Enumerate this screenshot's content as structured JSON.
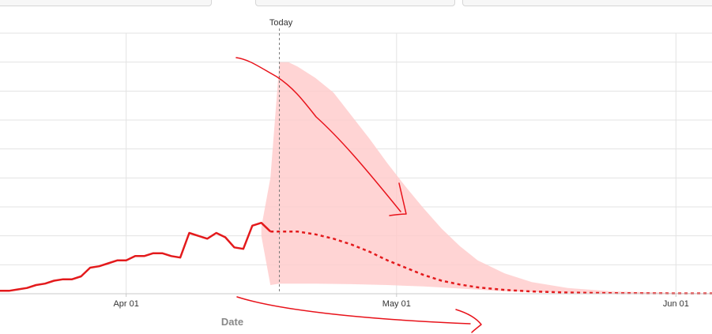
{
  "colors": {
    "series": "#e31a1c",
    "band": "#ffc9c9",
    "grid": "#e3e3e3",
    "annotation": "#e8121a"
  },
  "chart_data": {
    "type": "line",
    "title": "",
    "xlabel": "Date",
    "ylabel": "",
    "xlim": [
      "2020-03-18",
      "2020-06-05"
    ],
    "ylim": [
      0,
      9
    ],
    "grid": true,
    "x_ticks": [
      {
        "date": "2020-04-01",
        "label": "Apr 01"
      },
      {
        "date": "2020-05-01",
        "label": "May 01"
      },
      {
        "date": "2020-06-01",
        "label": "Jun 01"
      }
    ],
    "today": {
      "date": "2020-04-18",
      "label": "Today"
    },
    "series": [
      {
        "style": "solid",
        "points": [
          [
            "2020-03-18",
            0.1
          ],
          [
            "2020-03-19",
            0.1
          ],
          [
            "2020-03-20",
            0.15
          ],
          [
            "2020-03-21",
            0.2
          ],
          [
            "2020-03-22",
            0.3
          ],
          [
            "2020-03-23",
            0.35
          ],
          [
            "2020-03-24",
            0.45
          ],
          [
            "2020-03-25",
            0.5
          ],
          [
            "2020-03-26",
            0.5
          ],
          [
            "2020-03-27",
            0.6
          ],
          [
            "2020-03-28",
            0.9
          ],
          [
            "2020-03-29",
            0.95
          ],
          [
            "2020-03-30",
            1.05
          ],
          [
            "2020-03-31",
            1.15
          ],
          [
            "2020-04-01",
            1.15
          ],
          [
            "2020-04-02",
            1.3
          ],
          [
            "2020-04-03",
            1.3
          ],
          [
            "2020-04-04",
            1.4
          ],
          [
            "2020-04-05",
            1.4
          ],
          [
            "2020-04-06",
            1.3
          ],
          [
            "2020-04-07",
            1.25
          ],
          [
            "2020-04-08",
            2.1
          ],
          [
            "2020-04-09",
            2.0
          ],
          [
            "2020-04-10",
            1.9
          ],
          [
            "2020-04-11",
            2.1
          ],
          [
            "2020-04-12",
            1.95
          ],
          [
            "2020-04-13",
            1.6
          ],
          [
            "2020-04-14",
            1.55
          ],
          [
            "2020-04-15",
            2.35
          ],
          [
            "2020-04-16",
            2.45
          ],
          [
            "2020-04-17",
            2.15
          ]
        ]
      },
      {
        "style": "dotted",
        "points": [
          [
            "2020-04-17",
            2.15
          ],
          [
            "2020-04-18",
            2.15
          ],
          [
            "2020-04-20",
            2.15
          ],
          [
            "2020-04-22",
            2.05
          ],
          [
            "2020-04-24",
            1.9
          ],
          [
            "2020-04-26",
            1.7
          ],
          [
            "2020-04-28",
            1.45
          ],
          [
            "2020-04-30",
            1.15
          ],
          [
            "2020-05-02",
            0.9
          ],
          [
            "2020-05-04",
            0.65
          ],
          [
            "2020-05-06",
            0.45
          ],
          [
            "2020-05-08",
            0.32
          ],
          [
            "2020-05-10",
            0.22
          ],
          [
            "2020-05-13",
            0.13
          ],
          [
            "2020-05-16",
            0.08
          ],
          [
            "2020-05-20",
            0.04
          ],
          [
            "2020-05-25",
            0.02
          ],
          [
            "2020-06-01",
            0.01
          ],
          [
            "2020-06-05",
            0.01
          ]
        ]
      }
    ],
    "band": {
      "upper": [
        [
          "2020-04-16",
          2.3
        ],
        [
          "2020-04-17",
          4.0
        ],
        [
          "2020-04-18",
          8.0
        ],
        [
          "2020-04-19",
          8.0
        ],
        [
          "2020-04-20",
          7.85
        ],
        [
          "2020-04-22",
          7.45
        ],
        [
          "2020-04-24",
          6.95
        ],
        [
          "2020-04-26",
          6.15
        ],
        [
          "2020-04-28",
          5.35
        ],
        [
          "2020-04-30",
          4.5
        ],
        [
          "2020-05-02",
          3.7
        ],
        [
          "2020-05-04",
          2.95
        ],
        [
          "2020-05-06",
          2.25
        ],
        [
          "2020-05-08",
          1.65
        ],
        [
          "2020-05-10",
          1.15
        ],
        [
          "2020-05-13",
          0.7
        ],
        [
          "2020-05-16",
          0.4
        ],
        [
          "2020-05-20",
          0.2
        ],
        [
          "2020-05-25",
          0.08
        ],
        [
          "2020-06-01",
          0.03
        ],
        [
          "2020-06-05",
          0.02
        ]
      ],
      "lower": [
        [
          "2020-04-16",
          2.0
        ],
        [
          "2020-04-17",
          0.3
        ],
        [
          "2020-04-18",
          0.35
        ],
        [
          "2020-04-22",
          0.35
        ],
        [
          "2020-04-26",
          0.33
        ],
        [
          "2020-04-30",
          0.3
        ],
        [
          "2020-05-04",
          0.25
        ],
        [
          "2020-05-08",
          0.18
        ],
        [
          "2020-05-12",
          0.1
        ],
        [
          "2020-05-16",
          0.06
        ],
        [
          "2020-05-20",
          0.03
        ],
        [
          "2020-05-25",
          0.01
        ],
        [
          "2020-06-01",
          0.0
        ],
        [
          "2020-06-05",
          0.0
        ]
      ]
    }
  }
}
